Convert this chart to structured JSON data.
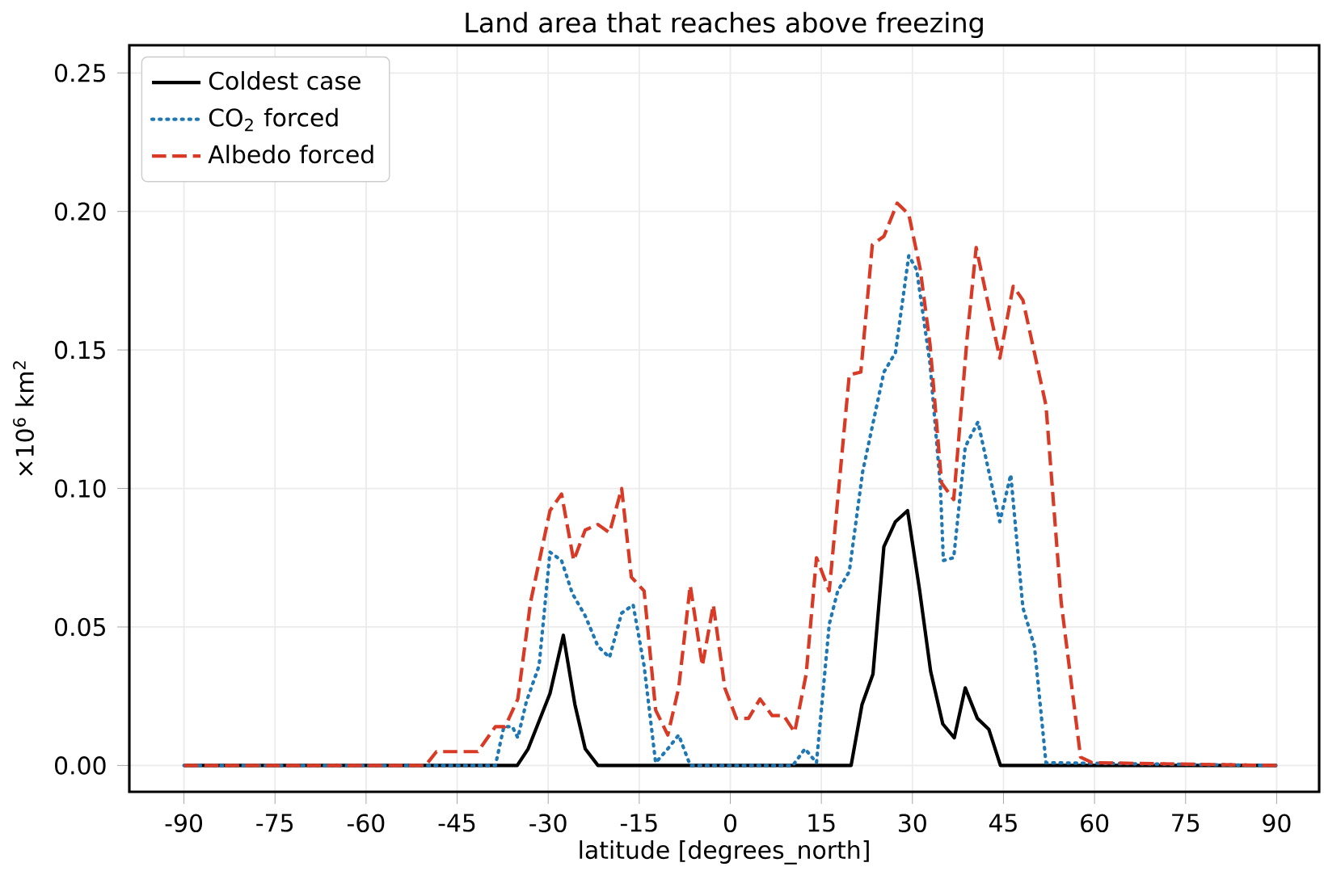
{
  "chart_data": {
    "type": "line",
    "title": "Land area that reaches above freezing",
    "xlabel": "latitude [degrees_north]",
    "ylabel": "×10$^{6}$ km$^{2}$",
    "xlim": [
      -99,
      97
    ],
    "ylim": [
      -0.0095,
      0.26
    ],
    "xticks": [
      -90,
      -75,
      -60,
      -45,
      -30,
      -15,
      0,
      15,
      30,
      45,
      60,
      75,
      90
    ],
    "yticks": [
      {
        "value": 0,
        "label": "0.00"
      },
      {
        "value": 0.05,
        "label": "0.05"
      },
      {
        "value": 0.1,
        "label": "0.10"
      },
      {
        "value": 0.15,
        "label": "0.15"
      },
      {
        "value": 0.2,
        "label": "0.20"
      },
      {
        "value": 0.25,
        "label": "0.25"
      }
    ],
    "grid": true,
    "legend": "top left",
    "marker": "none",
    "series": [
      {
        "name": "Coldest case",
        "color": "#000000",
        "line_style": "solid",
        "x": [
          -90,
          -35.1,
          -33.3,
          -29.7,
          -27.5,
          -25.6,
          -23.9,
          -21.8,
          19.9,
          21.7,
          23.5,
          25.3,
          27.2,
          29.2,
          31.2,
          33.0,
          35.0,
          36.9,
          38.7,
          40.7,
          42.6,
          44.5,
          90
        ],
        "values": [
          0,
          0,
          0.006,
          0.026,
          0.047,
          0.022,
          0.006,
          0,
          0,
          0.022,
          0.033,
          0.079,
          0.088,
          0.092,
          0.063,
          0.034,
          0.015,
          0.01,
          0.028,
          0.017,
          0.013,
          0,
          0
        ]
      },
      {
        "name": "CO$_{2}$ forced",
        "color": "#1f78b4",
        "line_style": "dotted",
        "x": [
          -90,
          -38.7,
          -37.3,
          -35.9,
          -35.0,
          -33.6,
          -31.5,
          -29.7,
          -27.8,
          -26.0,
          -23.9,
          -21.8,
          -19.9,
          -17.9,
          -16.0,
          -14.2,
          -12.3,
          -10.3,
          -8.5,
          -6.6,
          10.3,
          12.3,
          14.2,
          16.3,
          17.7,
          19.6,
          21.8,
          25.3,
          27.2,
          29.4,
          30.7,
          32.9,
          34.6,
          35.1,
          36.8,
          38.7,
          40.8,
          44.4,
          46.2,
          48.2,
          50.1,
          52.0,
          90
        ],
        "values": [
          0,
          0,
          0.014,
          0.014,
          0.01,
          0.023,
          0.036,
          0.077,
          0.074,
          0.062,
          0.054,
          0.043,
          0.039,
          0.055,
          0.058,
          0.036,
          0.001,
          0.006,
          0.011,
          0,
          0,
          0.006,
          0.001,
          0.051,
          0.063,
          0.07,
          0.106,
          0.142,
          0.149,
          0.184,
          0.179,
          0.145,
          0.101,
          0.074,
          0.075,
          0.115,
          0.124,
          0.088,
          0.105,
          0.057,
          0.043,
          0.001,
          0
        ]
      },
      {
        "name": "Albedo forced",
        "color": "#d93a26",
        "line_style": "dashed",
        "x": [
          -90,
          -50.2,
          -48.4,
          -41.6,
          -38.7,
          -37.1,
          -35.0,
          -32.9,
          -29.7,
          -27.8,
          -25.8,
          -23.9,
          -21.8,
          -19.9,
          -17.9,
          -16.3,
          -14.2,
          -12.3,
          -10.3,
          -8.5,
          -6.6,
          -4.6,
          -2.8,
          -0.9,
          1.0,
          3.0,
          4.9,
          6.9,
          8.8,
          10.6,
          12.5,
          14.2,
          16.3,
          19.6,
          21.5,
          23.4,
          25.3,
          27.5,
          29.4,
          31.3,
          32.9,
          34.8,
          36.8,
          39.0,
          40.5,
          44.4,
          46.6,
          48.2,
          50.1,
          52.0,
          54.5,
          57.7,
          59.6,
          90
        ],
        "values": [
          0,
          0,
          0.005,
          0.005,
          0.014,
          0.014,
          0.024,
          0.059,
          0.092,
          0.098,
          0.074,
          0.085,
          0.087,
          0.084,
          0.1,
          0.068,
          0.063,
          0.02,
          0.011,
          0.028,
          0.065,
          0.036,
          0.058,
          0.028,
          0.017,
          0.017,
          0.024,
          0.018,
          0.018,
          0.012,
          0.033,
          0.075,
          0.063,
          0.141,
          0.142,
          0.188,
          0.191,
          0.203,
          0.199,
          0.179,
          0.152,
          0.102,
          0.096,
          0.154,
          0.187,
          0.147,
          0.173,
          0.168,
          0.149,
          0.13,
          0.059,
          0.003,
          0.001,
          0
        ]
      }
    ]
  }
}
